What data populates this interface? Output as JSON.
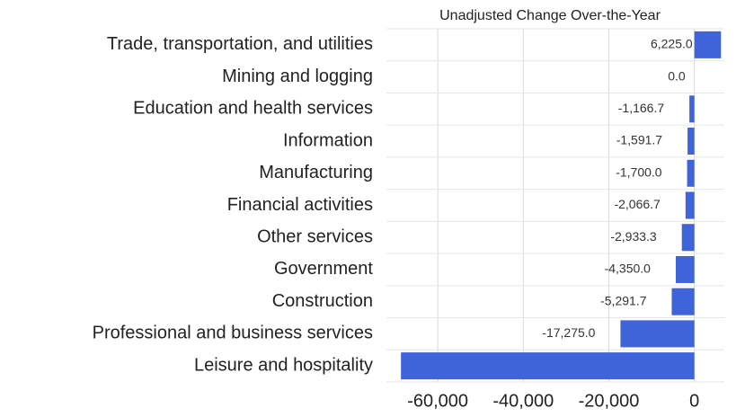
{
  "chart_data": {
    "type": "hbar",
    "title": "Unadjusted Change Over-the-Year",
    "categories": [
      "Trade, transportation, and utilities",
      "Mining and logging",
      "Education and health services",
      "Information",
      "Manufacturing",
      "Financial activities",
      "Other services",
      "Government",
      "Construction",
      "Professional and business services",
      "Leisure and hospitality"
    ],
    "values": [
      6225.0,
      0.0,
      -1166.7,
      -1591.7,
      -1700.0,
      -2066.7,
      -2933.3,
      -4350.0,
      -5291.7,
      -17275.0,
      -68600
    ],
    "value_labels": [
      "6,225.0",
      "0.0",
      "-1,166.7",
      "-1,591.7",
      "-1,700.0",
      "-2,066.7",
      "-2,933.3",
      "-4,350.0",
      "-5,291.7",
      "-17,275.0",
      null
    ],
    "color": "#3f63d9",
    "xlim": [
      -72000,
      7000
    ],
    "xticks": [
      {
        "value": -60000,
        "label": "-60,000"
      },
      {
        "value": -40000,
        "label": "-40,000"
      },
      {
        "value": -20000,
        "label": "-20,000"
      },
      0
    ],
    "grid": true
  }
}
